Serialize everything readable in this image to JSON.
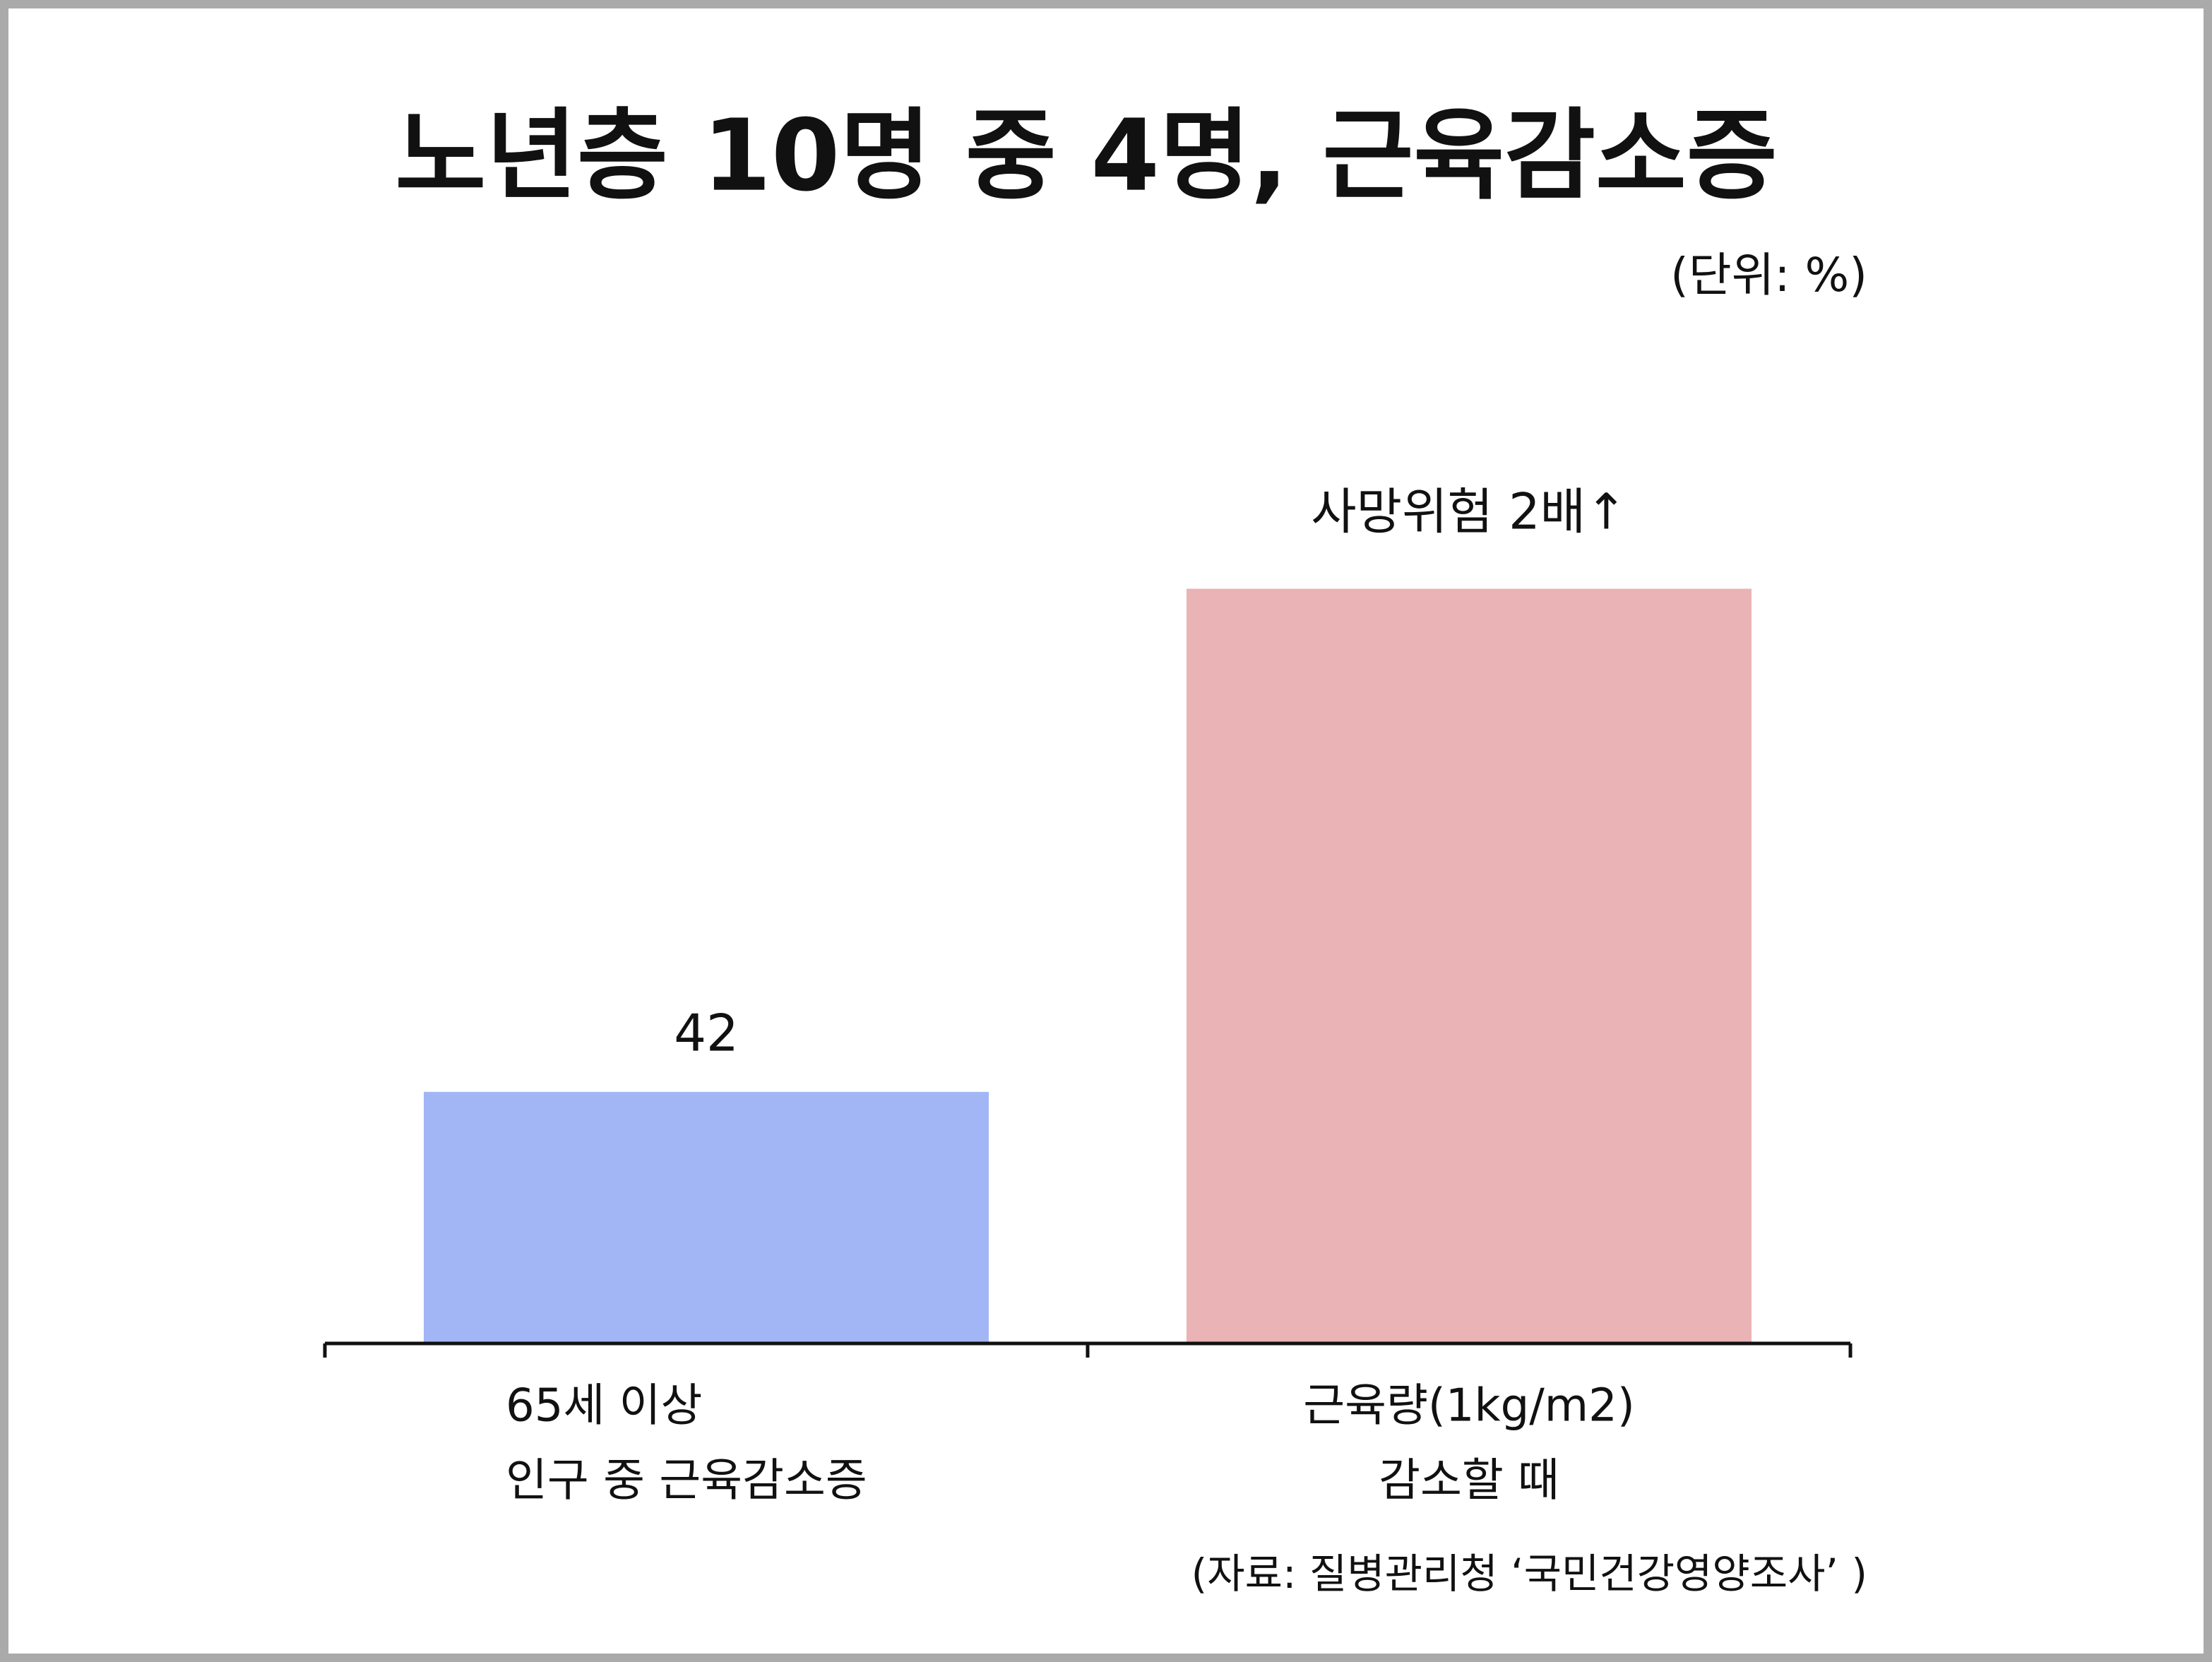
{
  "chart_data": {
    "type": "bar",
    "title": "노년층 10명 중 4명, 근육감소증",
    "subtitle": "(단위: %)",
    "categories": [
      [
        "65세 이상",
        "인구 중 근육감소증"
      ],
      [
        "근육량(1kg/m2)",
        "감소할 때"
      ]
    ],
    "values": [
      42,
      126
    ],
    "value_labels": [
      "42",
      null
    ],
    "colors": [
      "#a2b6f6",
      "#eab3b5"
    ],
    "annotation": "사망위험 2배↑",
    "source": "(자료: 질병관리청 ‘국민건강영양조사’ )",
    "ylim": [
      0,
      150
    ],
    "grid": false
  }
}
